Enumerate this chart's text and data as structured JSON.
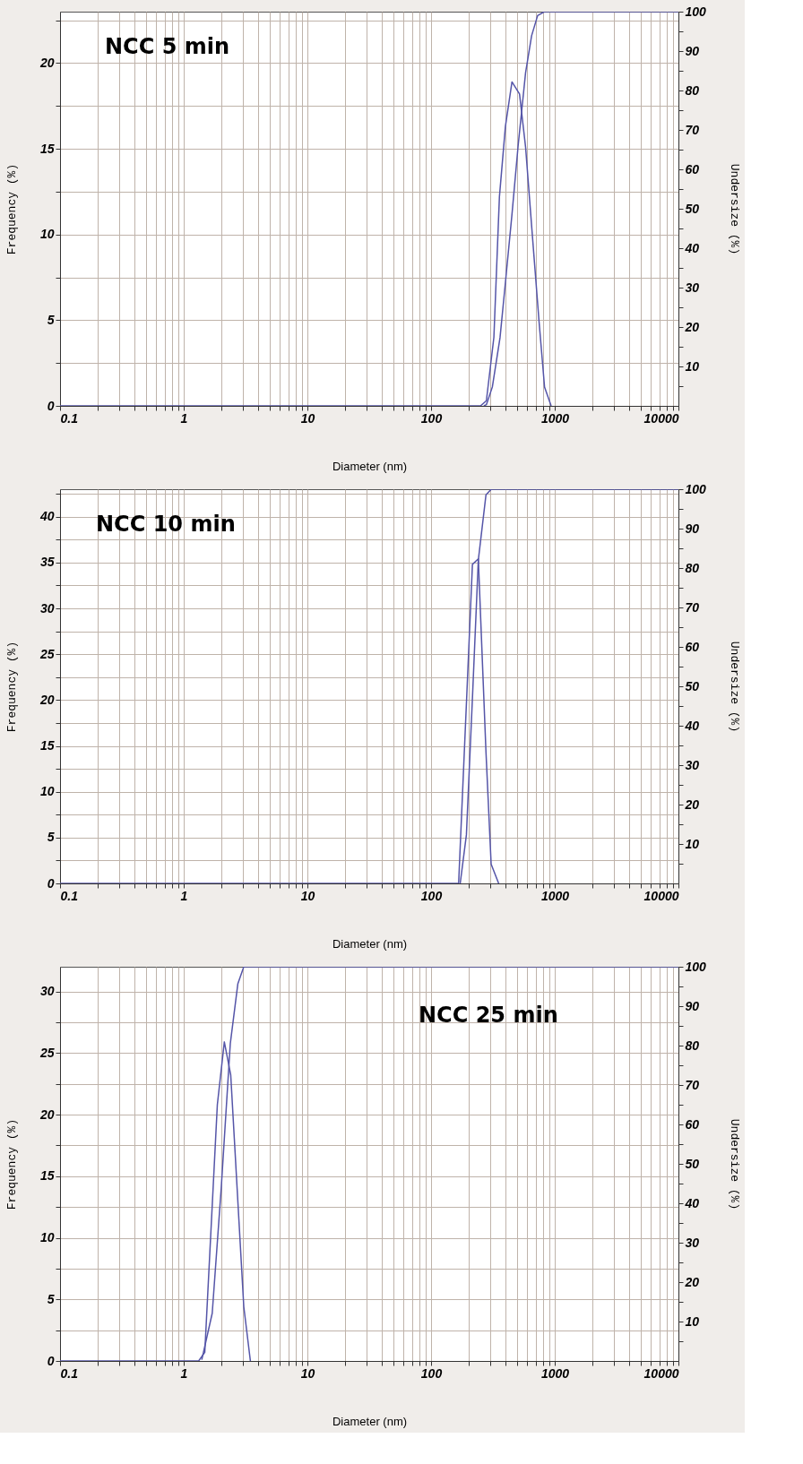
{
  "chart_data": [
    {
      "type": "line",
      "xlabel": "Diameter (nm)",
      "ylabel": "Frequency (%)",
      "y2label": "Undersize (%)",
      "annotations": [
        "NCC 5 min"
      ],
      "log": "x",
      "grid": true,
      "marker": "none",
      "line_style": "solid",
      "xlim": [
        0.1,
        10000
      ],
      "xticks": [
        0.1,
        {
          "value": 0.2,
          "label": null
        },
        {
          "value": 0.3,
          "label": null
        },
        {
          "value": 0.4,
          "label": null
        },
        {
          "value": 0.5,
          "label": null
        },
        {
          "value": 0.6,
          "label": null
        },
        {
          "value": 0.7,
          "label": null
        },
        {
          "value": 0.8,
          "label": null
        },
        {
          "value": 0.9,
          "label": null
        },
        1,
        {
          "value": 2,
          "label": null
        },
        {
          "value": 3,
          "label": null
        },
        {
          "value": 4,
          "label": null
        },
        {
          "value": 5,
          "label": null
        },
        {
          "value": 6,
          "label": null
        },
        {
          "value": 7,
          "label": null
        },
        {
          "value": 8,
          "label": null
        },
        {
          "value": 9,
          "label": null
        },
        10,
        {
          "value": 20,
          "label": null
        },
        {
          "value": 30,
          "label": null
        },
        {
          "value": 40,
          "label": null
        },
        {
          "value": 50,
          "label": null
        },
        {
          "value": 60,
          "label": null
        },
        {
          "value": 70,
          "label": null
        },
        {
          "value": 80,
          "label": null
        },
        {
          "value": 90,
          "label": null
        },
        100,
        {
          "value": 200,
          "label": null
        },
        {
          "value": 300,
          "label": null
        },
        {
          "value": 400,
          "label": null
        },
        {
          "value": 500,
          "label": null
        },
        {
          "value": 600,
          "label": null
        },
        {
          "value": 700,
          "label": null
        },
        {
          "value": 800,
          "label": null
        },
        {
          "value": 900,
          "label": null
        },
        1000,
        {
          "value": 2000,
          "label": null
        },
        {
          "value": 3000,
          "label": null
        },
        {
          "value": 4000,
          "label": null
        },
        {
          "value": 5000,
          "label": null
        },
        {
          "value": 6000,
          "label": null
        },
        {
          "value": 7000,
          "label": null
        },
        {
          "value": 8000,
          "label": null
        },
        {
          "value": 9000,
          "label": null
        },
        10000
      ],
      "ylim": [
        0,
        23
      ],
      "yticks": [
        0,
        {
          "value": 2.5,
          "label": null
        },
        5,
        {
          "value": 7.5,
          "label": null
        },
        10,
        {
          "value": 12.5,
          "label": null
        },
        15,
        {
          "value": 17.5,
          "label": null
        },
        20,
        {
          "value": 22.5,
          "label": null
        }
      ],
      "y2lim": [
        0,
        100
      ],
      "y2ticks": [
        {
          "value": 5,
          "label": null
        },
        10,
        {
          "value": 15,
          "label": null
        },
        20,
        {
          "value": 25,
          "label": null
        },
        30,
        {
          "value": 35,
          "label": null
        },
        40,
        {
          "value": 45,
          "label": null
        },
        50,
        {
          "value": 55,
          "label": null
        },
        60,
        {
          "value": 65,
          "label": null
        },
        70,
        {
          "value": 75,
          "label": null
        },
        80,
        {
          "value": 85,
          "label": null
        },
        90,
        {
          "value": 95,
          "label": null
        },
        100
      ],
      "series": [
        {
          "color": "#5555a8",
          "x": [
            0.1,
            0.3,
            251,
            280,
            322,
            357,
            399,
            451,
            519,
            581,
            668,
            747,
            827,
            935
          ],
          "values": [
            0,
            0,
            0,
            0.3,
            4.0,
            12.2,
            16.3,
            18.9,
            18.2,
            15.1,
            9.4,
            4.9,
            1.1,
            0
          ]
        },
        {
          "axis": "y2",
          "color": "#5555a8",
          "x": [
            267,
            280,
            313,
            361,
            404,
            451,
            505,
            581,
            650,
            727,
            827,
            10000
          ],
          "values": [
            0,
            0.3,
            4.8,
            17.3,
            33,
            48.6,
            65.8,
            84.5,
            93.9,
            99,
            100,
            100
          ]
        }
      ]
    },
    {
      "type": "line",
      "xlabel": "Diameter (nm)",
      "ylabel": "Frequency (%)",
      "y2label": "Undersize (%)",
      "annotations": [
        "NCC 10 min"
      ],
      "log": "x",
      "grid": true,
      "marker": "none",
      "line_style": "solid",
      "xlim": [
        0.1,
        10000
      ],
      "xticks": [
        0.1,
        {
          "value": 0.2,
          "label": null
        },
        {
          "value": 0.3,
          "label": null
        },
        {
          "value": 0.4,
          "label": null
        },
        {
          "value": 0.5,
          "label": null
        },
        {
          "value": 0.6,
          "label": null
        },
        {
          "value": 0.7,
          "label": null
        },
        {
          "value": 0.8,
          "label": null
        },
        {
          "value": 0.9,
          "label": null
        },
        1,
        {
          "value": 2,
          "label": null
        },
        {
          "value": 3,
          "label": null
        },
        {
          "value": 4,
          "label": null
        },
        {
          "value": 5,
          "label": null
        },
        {
          "value": 6,
          "label": null
        },
        {
          "value": 7,
          "label": null
        },
        {
          "value": 8,
          "label": null
        },
        {
          "value": 9,
          "label": null
        },
        10,
        {
          "value": 20,
          "label": null
        },
        {
          "value": 30,
          "label": null
        },
        {
          "value": 40,
          "label": null
        },
        {
          "value": 50,
          "label": null
        },
        {
          "value": 60,
          "label": null
        },
        {
          "value": 70,
          "label": null
        },
        {
          "value": 80,
          "label": null
        },
        {
          "value": 90,
          "label": null
        },
        100,
        {
          "value": 200,
          "label": null
        },
        {
          "value": 300,
          "label": null
        },
        {
          "value": 400,
          "label": null
        },
        {
          "value": 500,
          "label": null
        },
        {
          "value": 600,
          "label": null
        },
        {
          "value": 700,
          "label": null
        },
        {
          "value": 800,
          "label": null
        },
        {
          "value": 900,
          "label": null
        },
        1000,
        {
          "value": 2000,
          "label": null
        },
        {
          "value": 3000,
          "label": null
        },
        {
          "value": 4000,
          "label": null
        },
        {
          "value": 5000,
          "label": null
        },
        {
          "value": 6000,
          "label": null
        },
        {
          "value": 7000,
          "label": null
        },
        {
          "value": 8000,
          "label": null
        },
        {
          "value": 9000,
          "label": null
        },
        10000
      ],
      "ylim": [
        0,
        43
      ],
      "yticks": [
        0,
        {
          "value": 2.5,
          "label": null
        },
        5,
        {
          "value": 7.5,
          "label": null
        },
        10,
        {
          "value": 12.5,
          "label": null
        },
        15,
        {
          "value": 17.5,
          "label": null
        },
        20,
        {
          "value": 22.5,
          "label": null
        },
        25,
        {
          "value": 27.5,
          "label": null
        },
        30,
        {
          "value": 32.5,
          "label": null
        },
        35,
        {
          "value": 37.5,
          "label": null
        },
        40,
        {
          "value": 42.5,
          "label": null
        }
      ],
      "y2lim": [
        0,
        100
      ],
      "y2ticks": [
        {
          "value": 5,
          "label": null
        },
        10,
        {
          "value": 15,
          "label": null
        },
        20,
        {
          "value": 25,
          "label": null
        },
        30,
        {
          "value": 35,
          "label": null
        },
        40,
        {
          "value": 45,
          "label": null
        },
        50,
        {
          "value": 55,
          "label": null
        },
        60,
        {
          "value": 65,
          "label": null
        },
        70,
        {
          "value": 75,
          "label": null
        },
        80,
        {
          "value": 85,
          "label": null
        },
        90,
        {
          "value": 95,
          "label": null
        },
        100
      ],
      "series": [
        {
          "color": "#5555a8",
          "x": [
            0.1,
            0.3,
            167,
            216,
            241,
            278,
            306,
            352
          ],
          "values": [
            0,
            0,
            0,
            34.8,
            35.4,
            14.3,
            2.1,
            0
          ]
        },
        {
          "axis": "y2",
          "color": "#5555a8",
          "x": [
            172,
            193,
            216,
            241,
            278,
            307,
            10000
          ],
          "values": [
            0,
            12.3,
            47,
            82,
            98.6,
            100,
            100
          ]
        }
      ]
    },
    {
      "type": "line",
      "xlabel": "Diameter (nm)",
      "ylabel": "Frequency (%)",
      "y2label": "Undersize (%)",
      "annotations": [
        "NCC 25 min"
      ],
      "log": "x",
      "grid": true,
      "marker": "none",
      "line_style": "solid",
      "xlim": [
        0.1,
        10000
      ],
      "xticks": [
        0.1,
        {
          "value": 0.2,
          "label": null
        },
        {
          "value": 0.3,
          "label": null
        },
        {
          "value": 0.4,
          "label": null
        },
        {
          "value": 0.5,
          "label": null
        },
        {
          "value": 0.6,
          "label": null
        },
        {
          "value": 0.7,
          "label": null
        },
        {
          "value": 0.8,
          "label": null
        },
        {
          "value": 0.9,
          "label": null
        },
        1,
        {
          "value": 2,
          "label": null
        },
        {
          "value": 3,
          "label": null
        },
        {
          "value": 4,
          "label": null
        },
        {
          "value": 5,
          "label": null
        },
        {
          "value": 6,
          "label": null
        },
        {
          "value": 7,
          "label": null
        },
        {
          "value": 8,
          "label": null
        },
        {
          "value": 9,
          "label": null
        },
        10,
        {
          "value": 20,
          "label": null
        },
        {
          "value": 30,
          "label": null
        },
        {
          "value": 40,
          "label": null
        },
        {
          "value": 50,
          "label": null
        },
        {
          "value": 60,
          "label": null
        },
        {
          "value": 70,
          "label": null
        },
        {
          "value": 80,
          "label": null
        },
        {
          "value": 90,
          "label": null
        },
        100,
        {
          "value": 200,
          "label": null
        },
        {
          "value": 300,
          "label": null
        },
        {
          "value": 400,
          "label": null
        },
        {
          "value": 500,
          "label": null
        },
        {
          "value": 600,
          "label": null
        },
        {
          "value": 700,
          "label": null
        },
        {
          "value": 800,
          "label": null
        },
        {
          "value": 900,
          "label": null
        },
        1000,
        {
          "value": 2000,
          "label": null
        },
        {
          "value": 3000,
          "label": null
        },
        {
          "value": 4000,
          "label": null
        },
        {
          "value": 5000,
          "label": null
        },
        {
          "value": 6000,
          "label": null
        },
        {
          "value": 7000,
          "label": null
        },
        {
          "value": 8000,
          "label": null
        },
        {
          "value": 9000,
          "label": null
        },
        10000
      ],
      "ylim": [
        0,
        32
      ],
      "yticks": [
        0,
        {
          "value": 2.5,
          "label": null
        },
        5,
        {
          "value": 7.5,
          "label": null
        },
        10,
        {
          "value": 12.5,
          "label": null
        },
        15,
        {
          "value": 17.5,
          "label": null
        },
        20,
        {
          "value": 22.5,
          "label": null
        },
        25,
        {
          "value": 27.5,
          "label": null
        },
        30
      ],
      "y2lim": [
        0,
        100
      ],
      "y2ticks": [
        {
          "value": 5,
          "label": null
        },
        10,
        {
          "value": 15,
          "label": null
        },
        20,
        {
          "value": 25,
          "label": null
        },
        30,
        {
          "value": 35,
          "label": null
        },
        40,
        {
          "value": 45,
          "label": null
        },
        50,
        {
          "value": 55,
          "label": null
        },
        60,
        {
          "value": 65,
          "label": null
        },
        70,
        {
          "value": 75,
          "label": null
        },
        80,
        {
          "value": 85,
          "label": null
        },
        90,
        {
          "value": 95,
          "label": null
        },
        100
      ],
      "series": [
        {
          "color": "#5555a8",
          "x": [
            0.1,
            0.3,
            1.32,
            1.48,
            1.87,
            2.13,
            2.4,
            3.06,
            3.46
          ],
          "values": [
            0,
            0,
            0,
            0.7,
            20.8,
            25.9,
            23.2,
            4.4,
            0
          ]
        },
        {
          "axis": "y2",
          "color": "#5555a8",
          "x": [
            1.4,
            1.7,
            2.01,
            2.38,
            2.74,
            3.06,
            10000
          ],
          "values": [
            0.3,
            12.1,
            43.8,
            80.5,
            95.7,
            100,
            100
          ]
        }
      ]
    }
  ]
}
